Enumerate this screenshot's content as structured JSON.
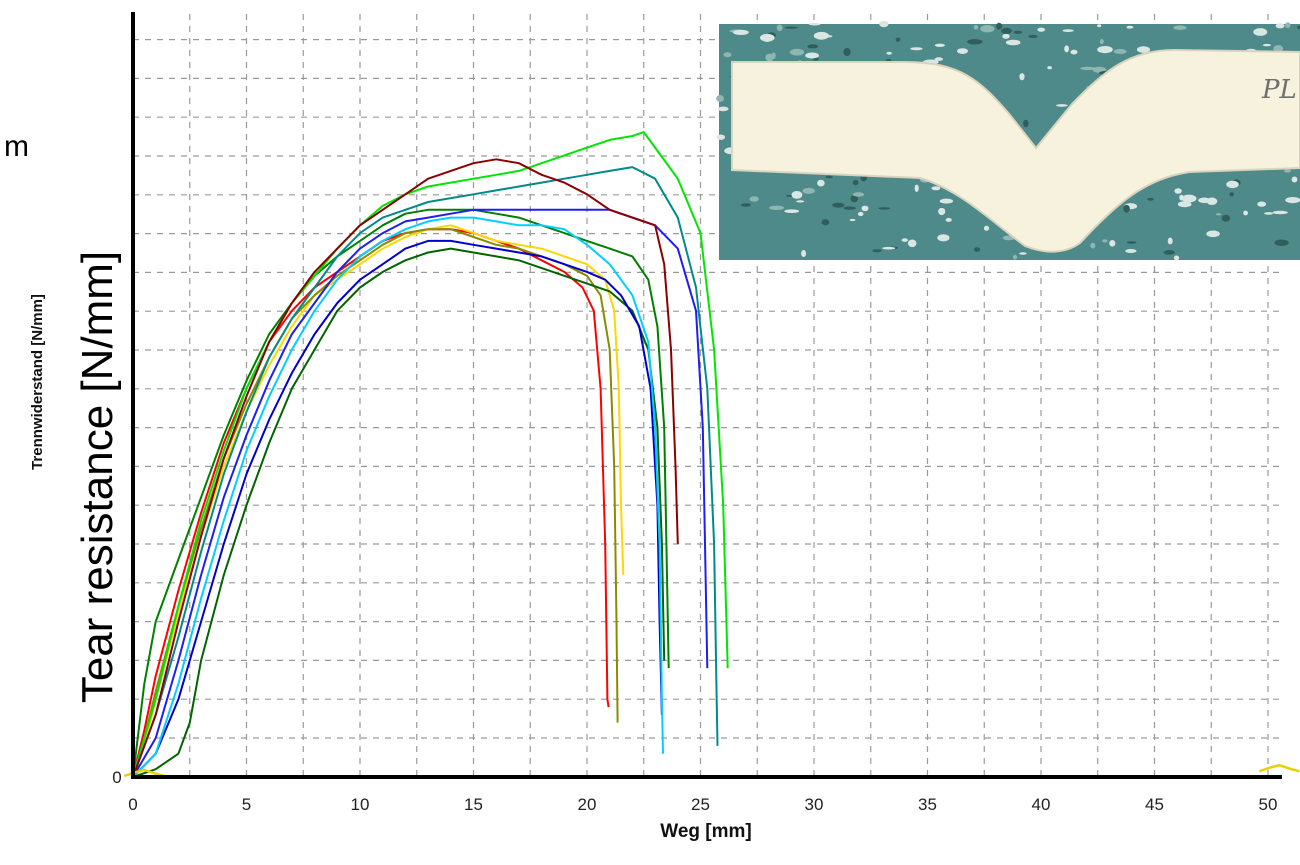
{
  "stray_label": "m",
  "inset": {
    "label": "icon:photo-inset-specimen",
    "handwriting": "PL",
    "colors": {
      "background": "#4f8a8a",
      "specimen": "#f5f1dc"
    }
  },
  "chart_data": {
    "type": "line",
    "xlabel": "Weg [mm]",
    "ylabel_small": "Trennwiderstand [N/mm]",
    "ylabel_large": "Tear resistance [N/mm]",
    "y_tick_labels": [
      "0"
    ],
    "x_ticks": [
      0,
      5,
      10,
      15,
      20,
      25,
      30,
      35,
      40,
      45,
      50
    ],
    "xlim": [
      0,
      52
    ],
    "ylim": [
      0,
      1
    ],
    "grid": true,
    "series": [
      {
        "color": "#ff0000",
        "points": [
          [
            0,
            0
          ],
          [
            0.5,
            0.06
          ],
          [
            1,
            0.13
          ],
          [
            2,
            0.24
          ],
          [
            3,
            0.34
          ],
          [
            4,
            0.43
          ],
          [
            5,
            0.5
          ],
          [
            6,
            0.56
          ],
          [
            7,
            0.6
          ],
          [
            8,
            0.63
          ],
          [
            9,
            0.65
          ],
          [
            10,
            0.67
          ],
          [
            11,
            0.69
          ],
          [
            12,
            0.7
          ],
          [
            13,
            0.705
          ],
          [
            14,
            0.705
          ],
          [
            15,
            0.7
          ],
          [
            16,
            0.69
          ],
          [
            17,
            0.68
          ],
          [
            18,
            0.665
          ],
          [
            19,
            0.65
          ],
          [
            19.8,
            0.63
          ],
          [
            20.3,
            0.6
          ],
          [
            20.6,
            0.5
          ],
          [
            20.8,
            0.3
          ],
          [
            20.9,
            0.1
          ],
          [
            20.95,
            0.09
          ]
        ]
      },
      {
        "color": "#ffd700",
        "points": [
          [
            0,
            0
          ],
          [
            0.5,
            0.04
          ],
          [
            1,
            0.1
          ],
          [
            2,
            0.21
          ],
          [
            3,
            0.31
          ],
          [
            4,
            0.4
          ],
          [
            5,
            0.47
          ],
          [
            6,
            0.53
          ],
          [
            7,
            0.58
          ],
          [
            8,
            0.62
          ],
          [
            9,
            0.64
          ],
          [
            10,
            0.66
          ],
          [
            11,
            0.68
          ],
          [
            12,
            0.695
          ],
          [
            13,
            0.705
          ],
          [
            14,
            0.71
          ],
          [
            15,
            0.7
          ],
          [
            16,
            0.69
          ],
          [
            17,
            0.685
          ],
          [
            18,
            0.68
          ],
          [
            19,
            0.67
          ],
          [
            20,
            0.66
          ],
          [
            20.8,
            0.64
          ],
          [
            21.2,
            0.6
          ],
          [
            21.4,
            0.5
          ],
          [
            21.5,
            0.35
          ],
          [
            21.6,
            0.26
          ]
        ]
      },
      {
        "color": "#8b8b00",
        "points": [
          [
            0,
            0
          ],
          [
            0.5,
            0.05
          ],
          [
            1,
            0.11
          ],
          [
            2,
            0.22
          ],
          [
            3,
            0.32
          ],
          [
            4,
            0.41
          ],
          [
            5,
            0.48
          ],
          [
            6,
            0.54
          ],
          [
            7,
            0.59
          ],
          [
            8,
            0.62
          ],
          [
            9,
            0.645
          ],
          [
            10,
            0.665
          ],
          [
            11,
            0.685
          ],
          [
            12,
            0.7
          ],
          [
            13,
            0.705
          ],
          [
            14,
            0.705
          ],
          [
            15,
            0.695
          ],
          [
            16,
            0.685
          ],
          [
            17,
            0.68
          ],
          [
            18,
            0.67
          ],
          [
            19,
            0.66
          ],
          [
            20,
            0.645
          ],
          [
            20.6,
            0.62
          ],
          [
            21,
            0.55
          ],
          [
            21.2,
            0.4
          ],
          [
            21.3,
            0.2
          ],
          [
            21.35,
            0.07
          ]
        ]
      },
      {
        "color": "#008000",
        "points": [
          [
            0,
            0
          ],
          [
            0.5,
            0.12
          ],
          [
            1,
            0.2
          ],
          [
            2,
            0.28
          ],
          [
            3,
            0.36
          ],
          [
            4,
            0.44
          ],
          [
            5,
            0.51
          ],
          [
            6,
            0.57
          ],
          [
            7,
            0.61
          ],
          [
            8,
            0.645
          ],
          [
            9,
            0.67
          ],
          [
            10,
            0.69
          ],
          [
            11,
            0.71
          ],
          [
            12,
            0.725
          ],
          [
            13,
            0.73
          ],
          [
            14,
            0.73
          ],
          [
            15,
            0.73
          ],
          [
            16,
            0.725
          ],
          [
            17,
            0.72
          ],
          [
            18,
            0.71
          ],
          [
            19,
            0.7
          ],
          [
            20,
            0.69
          ],
          [
            21,
            0.68
          ],
          [
            22,
            0.67
          ],
          [
            22.7,
            0.64
          ],
          [
            23.1,
            0.58
          ],
          [
            23.4,
            0.45
          ],
          [
            23.5,
            0.3
          ],
          [
            23.6,
            0.14
          ]
        ]
      },
      {
        "color": "#006400",
        "points": [
          [
            0,
            0
          ],
          [
            1,
            0.01
          ],
          [
            2,
            0.03
          ],
          [
            2.5,
            0.07
          ],
          [
            3,
            0.15
          ],
          [
            4,
            0.26
          ],
          [
            5,
            0.35
          ],
          [
            6,
            0.43
          ],
          [
            7,
            0.5
          ],
          [
            8,
            0.55
          ],
          [
            9,
            0.6
          ],
          [
            10,
            0.63
          ],
          [
            11,
            0.65
          ],
          [
            12,
            0.665
          ],
          [
            13,
            0.675
          ],
          [
            14,
            0.68
          ],
          [
            15,
            0.675
          ],
          [
            16,
            0.67
          ],
          [
            17,
            0.665
          ],
          [
            18,
            0.655
          ],
          [
            19,
            0.645
          ],
          [
            20,
            0.635
          ],
          [
            21,
            0.625
          ],
          [
            22,
            0.6
          ],
          [
            22.7,
            0.55
          ],
          [
            23.1,
            0.45
          ],
          [
            23.3,
            0.3
          ],
          [
            23.4,
            0.15
          ]
        ]
      },
      {
        "color": "#0000cd",
        "points": [
          [
            0,
            0
          ],
          [
            1,
            0.03
          ],
          [
            2,
            0.1
          ],
          [
            3,
            0.2
          ],
          [
            4,
            0.3
          ],
          [
            5,
            0.39
          ],
          [
            6,
            0.46
          ],
          [
            7,
            0.52
          ],
          [
            8,
            0.57
          ],
          [
            9,
            0.61
          ],
          [
            10,
            0.64
          ],
          [
            11,
            0.66
          ],
          [
            12,
            0.68
          ],
          [
            13,
            0.69
          ],
          [
            14,
            0.69
          ],
          [
            15,
            0.685
          ],
          [
            16,
            0.68
          ],
          [
            17,
            0.675
          ],
          [
            18,
            0.67
          ],
          [
            19,
            0.66
          ],
          [
            20,
            0.65
          ],
          [
            20.8,
            0.64
          ],
          [
            21.5,
            0.62
          ],
          [
            22.3,
            0.58
          ],
          [
            22.8,
            0.5
          ],
          [
            23.1,
            0.35
          ],
          [
            23.2,
            0.2
          ],
          [
            23.3,
            0.08
          ]
        ]
      },
      {
        "color": "#1e1ef0",
        "points": [
          [
            0,
            0
          ],
          [
            1,
            0.05
          ],
          [
            2,
            0.15
          ],
          [
            3,
            0.26
          ],
          [
            4,
            0.36
          ],
          [
            5,
            0.44
          ],
          [
            6,
            0.51
          ],
          [
            7,
            0.57
          ],
          [
            8,
            0.61
          ],
          [
            9,
            0.65
          ],
          [
            10,
            0.68
          ],
          [
            11,
            0.7
          ],
          [
            12,
            0.715
          ],
          [
            13,
            0.72
          ],
          [
            14,
            0.725
          ],
          [
            15,
            0.73
          ],
          [
            16,
            0.73
          ],
          [
            17,
            0.73
          ],
          [
            18,
            0.73
          ],
          [
            19,
            0.73
          ],
          [
            20,
            0.73
          ],
          [
            21,
            0.73
          ],
          [
            22,
            0.72
          ],
          [
            23,
            0.71
          ],
          [
            24,
            0.68
          ],
          [
            24.8,
            0.6
          ],
          [
            25.1,
            0.45
          ],
          [
            25.2,
            0.3
          ],
          [
            25.3,
            0.14
          ]
        ]
      },
      {
        "color": "#00cfff",
        "points": [
          [
            0,
            0
          ],
          [
            1,
            0.03
          ],
          [
            2,
            0.12
          ],
          [
            3,
            0.23
          ],
          [
            4,
            0.33
          ],
          [
            5,
            0.42
          ],
          [
            6,
            0.49
          ],
          [
            7,
            0.55
          ],
          [
            8,
            0.6
          ],
          [
            9,
            0.64
          ],
          [
            10,
            0.67
          ],
          [
            11,
            0.69
          ],
          [
            12,
            0.705
          ],
          [
            13,
            0.715
          ],
          [
            14,
            0.72
          ],
          [
            15,
            0.72
          ],
          [
            16,
            0.715
          ],
          [
            17,
            0.71
          ],
          [
            18,
            0.71
          ],
          [
            19,
            0.705
          ],
          [
            20,
            0.685
          ],
          [
            21,
            0.66
          ],
          [
            22,
            0.62
          ],
          [
            22.7,
            0.56
          ],
          [
            23,
            0.45
          ],
          [
            23.2,
            0.3
          ],
          [
            23.3,
            0.1
          ],
          [
            23.35,
            0.03
          ]
        ]
      },
      {
        "color": "#008b8b",
        "points": [
          [
            0,
            0
          ],
          [
            1,
            0.08
          ],
          [
            2,
            0.18
          ],
          [
            3,
            0.29
          ],
          [
            4,
            0.39
          ],
          [
            5,
            0.47
          ],
          [
            6,
            0.54
          ],
          [
            7,
            0.59
          ],
          [
            8,
            0.63
          ],
          [
            9,
            0.67
          ],
          [
            10,
            0.7
          ],
          [
            11,
            0.72
          ],
          [
            12,
            0.73
          ],
          [
            13,
            0.74
          ],
          [
            14,
            0.745
          ],
          [
            15,
            0.75
          ],
          [
            16,
            0.755
          ],
          [
            17,
            0.76
          ],
          [
            18,
            0.765
          ],
          [
            19,
            0.77
          ],
          [
            20,
            0.775
          ],
          [
            21,
            0.78
          ],
          [
            22,
            0.785
          ],
          [
            23,
            0.77
          ],
          [
            24,
            0.72
          ],
          [
            24.8,
            0.63
          ],
          [
            25.3,
            0.5
          ],
          [
            25.6,
            0.3
          ],
          [
            25.7,
            0.12
          ],
          [
            25.75,
            0.04
          ]
        ]
      },
      {
        "color": "#00e600",
        "points": [
          [
            0,
            0
          ],
          [
            1,
            0.1
          ],
          [
            2,
            0.22
          ],
          [
            3,
            0.33
          ],
          [
            4,
            0.42
          ],
          [
            5,
            0.5
          ],
          [
            6,
            0.56
          ],
          [
            7,
            0.61
          ],
          [
            8,
            0.645
          ],
          [
            9,
            0.68
          ],
          [
            10,
            0.71
          ],
          [
            11,
            0.735
          ],
          [
            12,
            0.75
          ],
          [
            13,
            0.76
          ],
          [
            14,
            0.765
          ],
          [
            15,
            0.77
          ],
          [
            16,
            0.775
          ],
          [
            17,
            0.78
          ],
          [
            18,
            0.79
          ],
          [
            19,
            0.8
          ],
          [
            20,
            0.81
          ],
          [
            21,
            0.82
          ],
          [
            22,
            0.825
          ],
          [
            22.5,
            0.83
          ],
          [
            23,
            0.81
          ],
          [
            24,
            0.77
          ],
          [
            25,
            0.7
          ],
          [
            25.6,
            0.55
          ],
          [
            26,
            0.35
          ],
          [
            26.2,
            0.14
          ]
        ]
      },
      {
        "color": "#8b0000",
        "points": [
          [
            0,
            0
          ],
          [
            1,
            0.08
          ],
          [
            2,
            0.2
          ],
          [
            3,
            0.31
          ],
          [
            4,
            0.41
          ],
          [
            5,
            0.49
          ],
          [
            6,
            0.56
          ],
          [
            7,
            0.61
          ],
          [
            8,
            0.65
          ],
          [
            9,
            0.68
          ],
          [
            10,
            0.71
          ],
          [
            11,
            0.73
          ],
          [
            12,
            0.75
          ],
          [
            13,
            0.77
          ],
          [
            14,
            0.78
          ],
          [
            15,
            0.79
          ],
          [
            16,
            0.795
          ],
          [
            17,
            0.79
          ],
          [
            18,
            0.775
          ],
          [
            19,
            0.765
          ],
          [
            20,
            0.75
          ],
          [
            21,
            0.73
          ],
          [
            22,
            0.72
          ],
          [
            23,
            0.71
          ],
          [
            23.4,
            0.66
          ],
          [
            23.7,
            0.55
          ],
          [
            23.9,
            0.4
          ],
          [
            24,
            0.3
          ]
        ]
      }
    ]
  }
}
